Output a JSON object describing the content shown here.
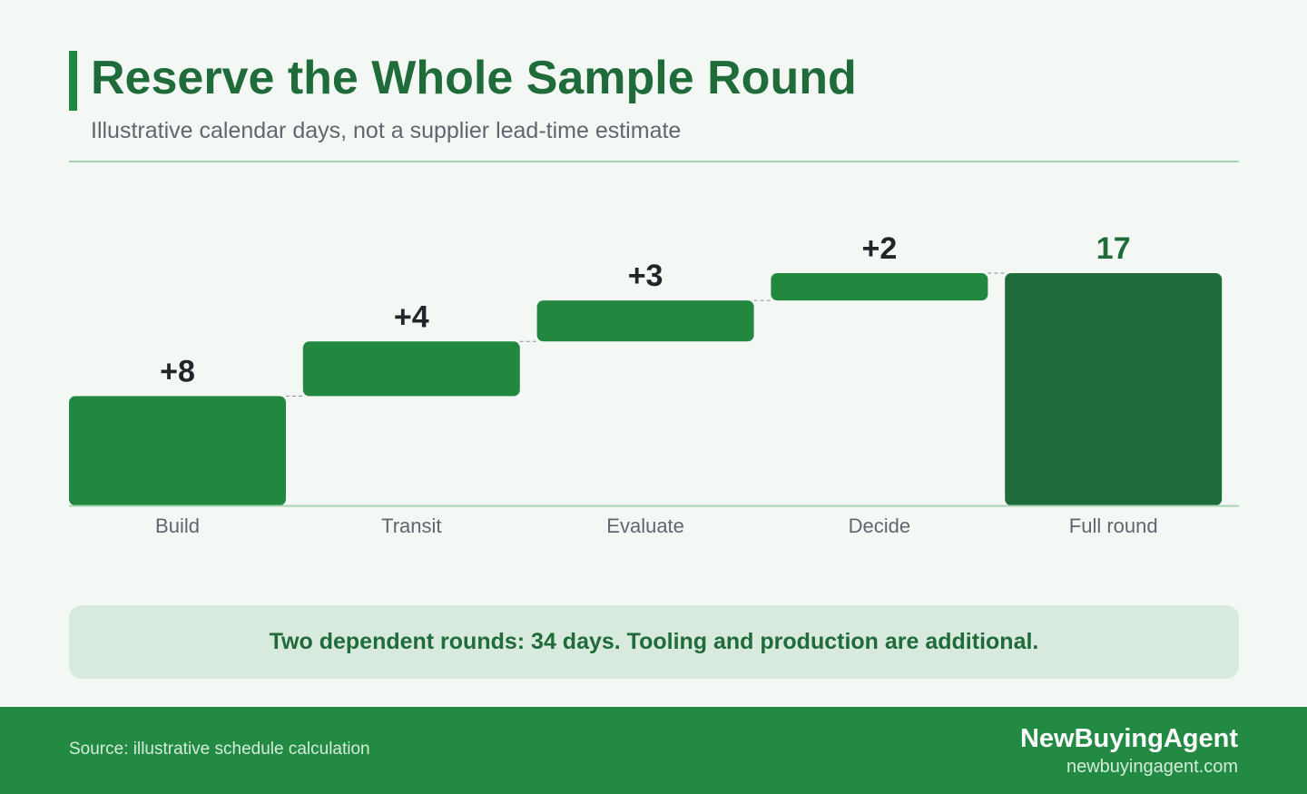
{
  "header": {
    "title": "Reserve the Whole Sample Round",
    "subtitle": "Illustrative calendar days, not a supplier lead-time estimate"
  },
  "chart_data": {
    "type": "bar",
    "subtype": "waterfall",
    "categories": [
      "Build",
      "Transit",
      "Evaluate",
      "Decide",
      "Full round"
    ],
    "values": [
      8,
      4,
      3,
      2,
      17
    ],
    "value_labels": [
      "+8",
      "+4",
      "+3",
      "+2",
      "17"
    ],
    "total_index": 4,
    "ylim": [
      0,
      17
    ],
    "grid": false,
    "colors": {
      "step": "#22883f",
      "total": "#1f6b3a"
    }
  },
  "callout": {
    "text": "Two dependent rounds: 34 days. Tooling and production are additional."
  },
  "footer": {
    "source": "Source: illustrative schedule calculation",
    "brand_name": "NewBuyingAgent",
    "brand_url": "newbuyingagent.com"
  }
}
